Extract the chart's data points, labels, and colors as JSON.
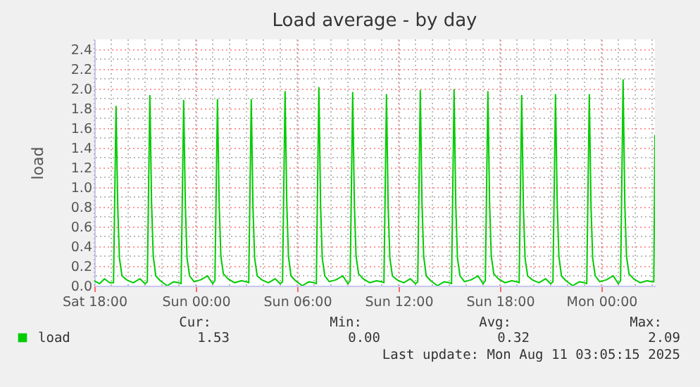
{
  "chart_data": {
    "type": "line",
    "title": "Load average - by day",
    "ylabel": "load",
    "xlim": [
      "2025-08-09T18:00",
      "2025-08-11T03:10"
    ],
    "ylim": [
      0,
      2.5
    ],
    "xticks": [
      {
        "value": "2025-08-09T18:00",
        "label": "Sat 18:00"
      },
      {
        "value": "2025-08-10T00:00",
        "label": "Sun 00:00"
      },
      {
        "value": "2025-08-10T06:00",
        "label": "Sun 06:00"
      },
      {
        "value": "2025-08-10T12:00",
        "label": "Sun 12:00"
      },
      {
        "value": "2025-08-10T18:00",
        "label": "Sun 18:00"
      },
      {
        "value": "2025-08-11T00:00",
        "label": "Mon 00:00"
      }
    ],
    "yticks": [
      {
        "value": 0,
        "label": "0.0"
      },
      {
        "value": 0.2,
        "label": "0.2"
      },
      {
        "value": 0.4,
        "label": "0.4"
      },
      {
        "value": 0.6,
        "label": "0.6"
      },
      {
        "value": 0.8,
        "label": "0.8"
      },
      {
        "value": 1.0,
        "label": "1.0"
      },
      {
        "value": 1.2,
        "label": "1.2"
      },
      {
        "value": 1.4,
        "label": "1.4"
      },
      {
        "value": 1.6,
        "label": "1.6"
      },
      {
        "value": 1.8,
        "label": "1.8"
      },
      {
        "value": 2.0,
        "label": "2.0"
      },
      {
        "value": 2.2,
        "label": "2.2"
      },
      {
        "value": 2.4,
        "label": "2.4"
      }
    ],
    "grid": true,
    "legend": "bottom",
    "annotations": [
      "Cur:",
      "1.53",
      "Min:",
      "0.00",
      "Avg:",
      "0.32",
      "Max:",
      "2.09",
      "Last update: Mon Aug 11 03:05:15 2025"
    ],
    "series": [
      {
        "name": "load",
        "color": "#00cc00",
        "x": [
          "2025-08-09T18:00",
          "2025-08-09T18:18",
          "2025-08-09T18:36",
          "2025-08-09T18:54",
          "2025-08-09T19:08",
          "2025-08-09T19:17",
          "2025-08-09T19:23",
          "2025-08-09T19:29",
          "2025-08-09T19:38",
          "2025-08-09T19:54",
          "2025-08-09T20:18",
          "2025-08-09T20:42",
          "2025-08-09T21:00",
          "2025-08-09T21:08",
          "2025-08-09T21:17",
          "2025-08-09T21:23",
          "2025-08-09T21:29",
          "2025-08-09T21:38",
          "2025-08-09T21:54",
          "2025-08-09T22:18",
          "2025-08-09T22:42",
          "2025-08-09T23:00",
          "2025-08-09T23:08",
          "2025-08-09T23:17",
          "2025-08-09T23:23",
          "2025-08-09T23:29",
          "2025-08-09T23:38",
          "2025-08-09T23:54",
          "2025-08-10T00:18",
          "2025-08-10T00:42",
          "2025-08-10T01:00",
          "2025-08-10T01:08",
          "2025-08-10T01:17",
          "2025-08-10T01:23",
          "2025-08-10T01:29",
          "2025-08-10T01:38",
          "2025-08-10T01:54",
          "2025-08-10T02:18",
          "2025-08-10T02:42",
          "2025-08-10T03:00",
          "2025-08-10T03:08",
          "2025-08-10T03:17",
          "2025-08-10T03:23",
          "2025-08-10T03:29",
          "2025-08-10T03:38",
          "2025-08-10T03:54",
          "2025-08-10T04:18",
          "2025-08-10T04:42",
          "2025-08-10T05:00",
          "2025-08-10T05:08",
          "2025-08-10T05:17",
          "2025-08-10T05:23",
          "2025-08-10T05:29",
          "2025-08-10T05:38",
          "2025-08-10T05:54",
          "2025-08-10T06:18",
          "2025-08-10T06:42",
          "2025-08-10T07:00",
          "2025-08-10T07:08",
          "2025-08-10T07:17",
          "2025-08-10T07:23",
          "2025-08-10T07:29",
          "2025-08-10T07:38",
          "2025-08-10T07:54",
          "2025-08-10T08:18",
          "2025-08-10T08:42",
          "2025-08-10T09:00",
          "2025-08-10T09:08",
          "2025-08-10T09:17",
          "2025-08-10T09:23",
          "2025-08-10T09:29",
          "2025-08-10T09:38",
          "2025-08-10T09:54",
          "2025-08-10T10:18",
          "2025-08-10T10:42",
          "2025-08-10T11:00",
          "2025-08-10T11:08",
          "2025-08-10T11:17",
          "2025-08-10T11:23",
          "2025-08-10T11:29",
          "2025-08-10T11:38",
          "2025-08-10T11:54",
          "2025-08-10T12:18",
          "2025-08-10T12:42",
          "2025-08-10T13:00",
          "2025-08-10T13:08",
          "2025-08-10T13:17",
          "2025-08-10T13:23",
          "2025-08-10T13:29",
          "2025-08-10T13:38",
          "2025-08-10T13:54",
          "2025-08-10T14:18",
          "2025-08-10T14:42",
          "2025-08-10T15:00",
          "2025-08-10T15:08",
          "2025-08-10T15:17",
          "2025-08-10T15:23",
          "2025-08-10T15:29",
          "2025-08-10T15:38",
          "2025-08-10T15:54",
          "2025-08-10T16:18",
          "2025-08-10T16:42",
          "2025-08-10T17:00",
          "2025-08-10T17:08",
          "2025-08-10T17:17",
          "2025-08-10T17:23",
          "2025-08-10T17:29",
          "2025-08-10T17:38",
          "2025-08-10T17:54",
          "2025-08-10T18:18",
          "2025-08-10T18:42",
          "2025-08-10T19:00",
          "2025-08-10T19:08",
          "2025-08-10T19:17",
          "2025-08-10T19:23",
          "2025-08-10T19:29",
          "2025-08-10T19:38",
          "2025-08-10T19:54",
          "2025-08-10T20:18",
          "2025-08-10T20:42",
          "2025-08-10T21:00",
          "2025-08-10T21:08",
          "2025-08-10T21:17",
          "2025-08-10T21:23",
          "2025-08-10T21:29",
          "2025-08-10T21:38",
          "2025-08-10T21:54",
          "2025-08-10T22:18",
          "2025-08-10T22:42",
          "2025-08-10T23:00",
          "2025-08-10T23:08",
          "2025-08-10T23:17",
          "2025-08-10T23:23",
          "2025-08-10T23:29",
          "2025-08-10T23:38",
          "2025-08-10T23:54",
          "2025-08-11T00:18",
          "2025-08-11T00:42",
          "2025-08-11T01:00",
          "2025-08-11T01:08",
          "2025-08-11T01:17",
          "2025-08-11T01:23",
          "2025-08-11T01:29",
          "2025-08-11T01:38",
          "2025-08-11T01:54",
          "2025-08-11T02:18",
          "2025-08-11T02:42",
          "2025-08-11T03:00",
          "2025-08-11T03:06",
          "2025-08-11T03:10"
        ],
        "values": [
          0.05,
          0.02,
          0.07,
          0.03,
          0.03,
          1.82,
          0.8,
          0.28,
          0.1,
          0.06,
          0.03,
          0.07,
          0.02,
          0.04,
          1.93,
          0.85,
          0.3,
          0.1,
          0.05,
          0.0,
          0.04,
          0.03,
          0.02,
          1.88,
          0.82,
          0.28,
          0.1,
          0.04,
          0.06,
          0.1,
          0.02,
          0.05,
          1.89,
          0.84,
          0.3,
          0.12,
          0.07,
          0.03,
          0.05,
          0.04,
          0.03,
          1.89,
          0.8,
          0.28,
          0.1,
          0.06,
          0.03,
          0.07,
          0.02,
          0.04,
          1.97,
          0.85,
          0.3,
          0.1,
          0.05,
          0.0,
          0.04,
          0.03,
          0.02,
          2.01,
          0.82,
          0.28,
          0.1,
          0.04,
          0.06,
          0.1,
          0.02,
          0.05,
          1.96,
          0.84,
          0.3,
          0.12,
          0.07,
          0.03,
          0.05,
          0.04,
          0.03,
          1.94,
          0.8,
          0.28,
          0.1,
          0.06,
          0.03,
          0.07,
          0.02,
          0.04,
          1.98,
          0.85,
          0.3,
          0.1,
          0.05,
          0.0,
          0.04,
          0.03,
          0.02,
          1.99,
          0.82,
          0.28,
          0.1,
          0.04,
          0.06,
          0.1,
          0.02,
          0.05,
          1.97,
          0.84,
          0.3,
          0.12,
          0.07,
          0.03,
          0.05,
          0.04,
          0.03,
          1.93,
          0.8,
          0.28,
          0.1,
          0.06,
          0.03,
          0.07,
          0.02,
          0.04,
          1.94,
          0.85,
          0.3,
          0.1,
          0.05,
          0.0,
          0.04,
          0.03,
          0.02,
          1.94,
          0.82,
          0.28,
          0.1,
          0.04,
          0.06,
          0.1,
          0.02,
          0.05,
          2.09,
          0.84,
          0.3,
          0.12,
          0.07,
          0.03,
          0.05,
          0.04,
          0.04,
          1.53
        ]
      }
    ]
  }
}
